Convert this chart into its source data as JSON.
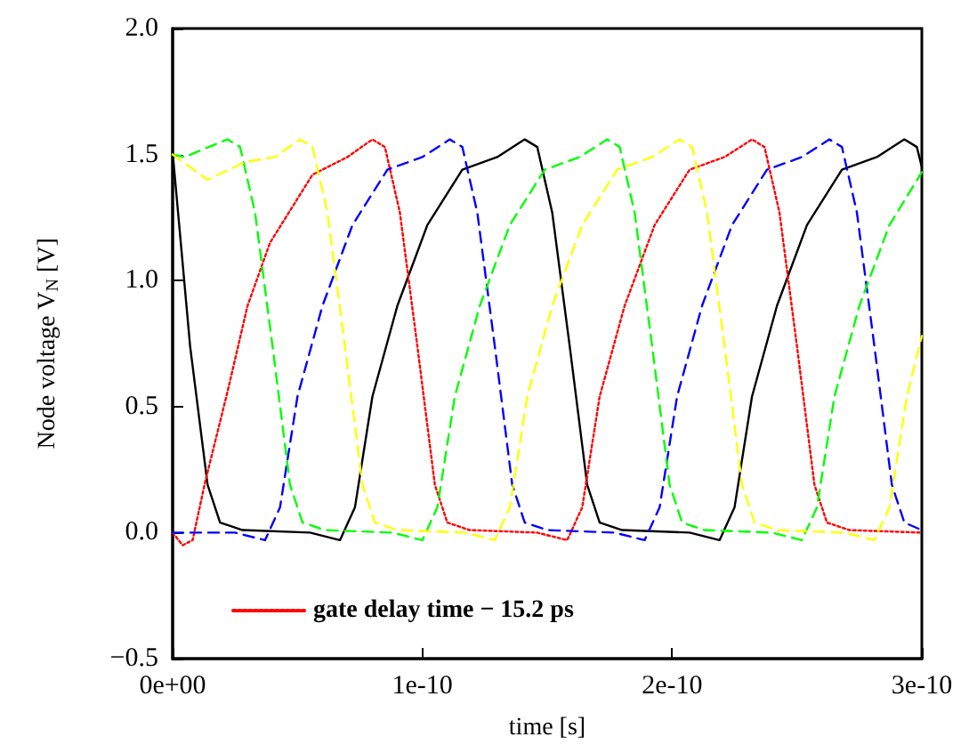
{
  "chart_data": {
    "type": "line",
    "xlabel": "time [s]",
    "ylabel": "Node voltage V$_{N}$ [V]",
    "xlim": [
      0,
      3e-10
    ],
    "xticks": [
      {
        "value": 0,
        "label": "0e+00"
      },
      {
        "value": 1e-10,
        "label": "1e-10"
      },
      {
        "value": 2e-10,
        "label": "2e-10"
      },
      {
        "value": 3e-10,
        "label": "3e-10"
      }
    ],
    "ylim": [
      -0.5,
      2.0
    ],
    "yticks": [
      {
        "value": -0.5,
        "label": "−0.5"
      },
      {
        "value": 0,
        "label": "0.0"
      },
      {
        "value": 0.5,
        "label": "0.5"
      },
      {
        "value": 1,
        "label": "1.0"
      },
      {
        "value": 1.5,
        "label": "1.5"
      },
      {
        "value": 2,
        "label": "2.0"
      }
    ],
    "grid": false,
    "legend": "bottom",
    "marker": "none",
    "series": [
      {
        "color": "#000000",
        "line_style": "solid",
        "x": [
          0,
          7e-12,
          1.4e-11,
          1.9e-11,
          2.8e-11,
          5.5e-11,
          6.7e-11,
          7.3e-11,
          8e-11,
          9e-11,
          1.02e-10,
          1.16e-10,
          1.3e-10,
          1.41e-10,
          1.46e-10,
          1.52e-10,
          1.59e-10,
          1.66e-10,
          1.71e-10,
          1.8e-10,
          2.07e-10,
          2.19e-10,
          2.25e-10,
          2.32e-10,
          2.42e-10,
          2.54e-10,
          2.68e-10,
          2.82e-10,
          2.93e-10,
          2.98e-10,
          3e-10
        ],
        "values": [
          1.51,
          0.74,
          0.19,
          0.04,
          0.01,
          0.0,
          -0.03,
          0.1,
          0.54,
          0.9,
          1.22,
          1.44,
          1.49,
          1.56,
          1.53,
          1.27,
          0.74,
          0.19,
          0.04,
          0.01,
          0.0,
          -0.03,
          0.1,
          0.54,
          0.9,
          1.22,
          1.44,
          1.49,
          1.56,
          1.53,
          1.45
        ]
      },
      {
        "name": "gate delay time − 15.2 ps",
        "color": "#ff0000",
        "line_style": "dotted",
        "x": [
          0,
          4e-12,
          8e-12,
          1.3e-11,
          2.2e-11,
          3e-11,
          3.9e-11,
          5.6e-11,
          7e-11,
          8e-11,
          8.5e-11,
          9.1e-11,
          9.8e-11,
          1.05e-10,
          1.1e-10,
          1.19e-10,
          1.46e-10,
          1.58e-10,
          1.64e-10,
          1.71e-10,
          1.81e-10,
          1.93e-10,
          2.07e-10,
          2.21e-10,
          2.32e-10,
          2.37e-10,
          2.43e-10,
          2.5e-10,
          2.57e-10,
          2.62e-10,
          2.71e-10,
          3e-10
        ],
        "values": [
          0.0,
          -0.05,
          -0.03,
          0.2,
          0.56,
          0.9,
          1.15,
          1.42,
          1.49,
          1.56,
          1.53,
          1.27,
          0.74,
          0.19,
          0.04,
          0.01,
          0.0,
          -0.03,
          0.1,
          0.54,
          0.9,
          1.22,
          1.44,
          1.49,
          1.56,
          1.53,
          1.27,
          0.74,
          0.19,
          0.04,
          0.01,
          0.0
        ]
      },
      {
        "color": "#0000ff",
        "line_style": "dashed",
        "x": [
          0,
          2.5e-11,
          3.7e-11,
          4.3e-11,
          5e-11,
          6e-11,
          7.2e-11,
          8.6e-11,
          1e-10,
          1.11e-10,
          1.16e-10,
          1.22e-10,
          1.29e-10,
          1.36e-10,
          1.41e-10,
          1.5e-10,
          1.77e-10,
          1.89e-10,
          1.95e-10,
          2.02e-10,
          2.12e-10,
          2.24e-10,
          2.38e-10,
          2.52e-10,
          2.63e-10,
          2.68e-10,
          2.74e-10,
          2.81e-10,
          2.88e-10,
          2.93e-10,
          3e-10
        ],
        "values": [
          0.0,
          0.0,
          -0.03,
          0.1,
          0.54,
          0.9,
          1.22,
          1.44,
          1.49,
          1.56,
          1.53,
          1.27,
          0.74,
          0.19,
          0.04,
          0.01,
          0.0,
          -0.03,
          0.1,
          0.54,
          0.9,
          1.22,
          1.44,
          1.49,
          1.56,
          1.53,
          1.27,
          0.74,
          0.19,
          0.04,
          0.01
        ]
      },
      {
        "color": "#00ff00",
        "line_style": "dashed",
        "x": [
          0,
          5e-12,
          1.2e-11,
          2.2e-11,
          2.7e-11,
          3.3e-11,
          4e-11,
          4.7e-11,
          5.2e-11,
          6.1e-11,
          8.8e-11,
          1e-10,
          1.06e-10,
          1.13e-10,
          1.23e-10,
          1.35e-10,
          1.49e-10,
          1.63e-10,
          1.74e-10,
          1.79e-10,
          1.85e-10,
          1.92e-10,
          1.99e-10,
          2.04e-10,
          2.13e-10,
          2.4e-10,
          2.52e-10,
          2.58e-10,
          2.65e-10,
          2.75e-10,
          2.87e-10,
          3e-10
        ],
        "values": [
          1.5,
          1.49,
          1.52,
          1.56,
          1.53,
          1.27,
          0.74,
          0.19,
          0.04,
          0.01,
          0.0,
          -0.03,
          0.1,
          0.54,
          0.9,
          1.22,
          1.44,
          1.49,
          1.56,
          1.53,
          1.27,
          0.74,
          0.19,
          0.04,
          0.01,
          0.0,
          -0.03,
          0.1,
          0.54,
          0.9,
          1.22,
          1.43
        ]
      },
      {
        "color": "#ffff00",
        "line_style": "dashed",
        "x": [
          0,
          1.4e-11,
          2.9e-11,
          4.1e-11,
          5.1e-11,
          5.6e-11,
          6.2e-11,
          6.9e-11,
          7.6e-11,
          8.1e-11,
          9e-11,
          1.17e-10,
          1.29e-10,
          1.35e-10,
          1.42e-10,
          1.52e-10,
          1.64e-10,
          1.78e-10,
          1.92e-10,
          2.03e-10,
          2.08e-10,
          2.14e-10,
          2.21e-10,
          2.28e-10,
          2.33e-10,
          2.42e-10,
          2.69e-10,
          2.81e-10,
          2.87e-10,
          2.94e-10,
          3e-10
        ],
        "values": [
          1.5,
          1.4,
          1.47,
          1.49,
          1.56,
          1.53,
          1.27,
          0.74,
          0.19,
          0.04,
          0.01,
          0.0,
          -0.03,
          0.1,
          0.54,
          0.9,
          1.22,
          1.44,
          1.49,
          1.56,
          1.53,
          1.27,
          0.74,
          0.19,
          0.04,
          0.01,
          0.0,
          -0.03,
          0.1,
          0.54,
          0.78
        ]
      }
    ]
  }
}
